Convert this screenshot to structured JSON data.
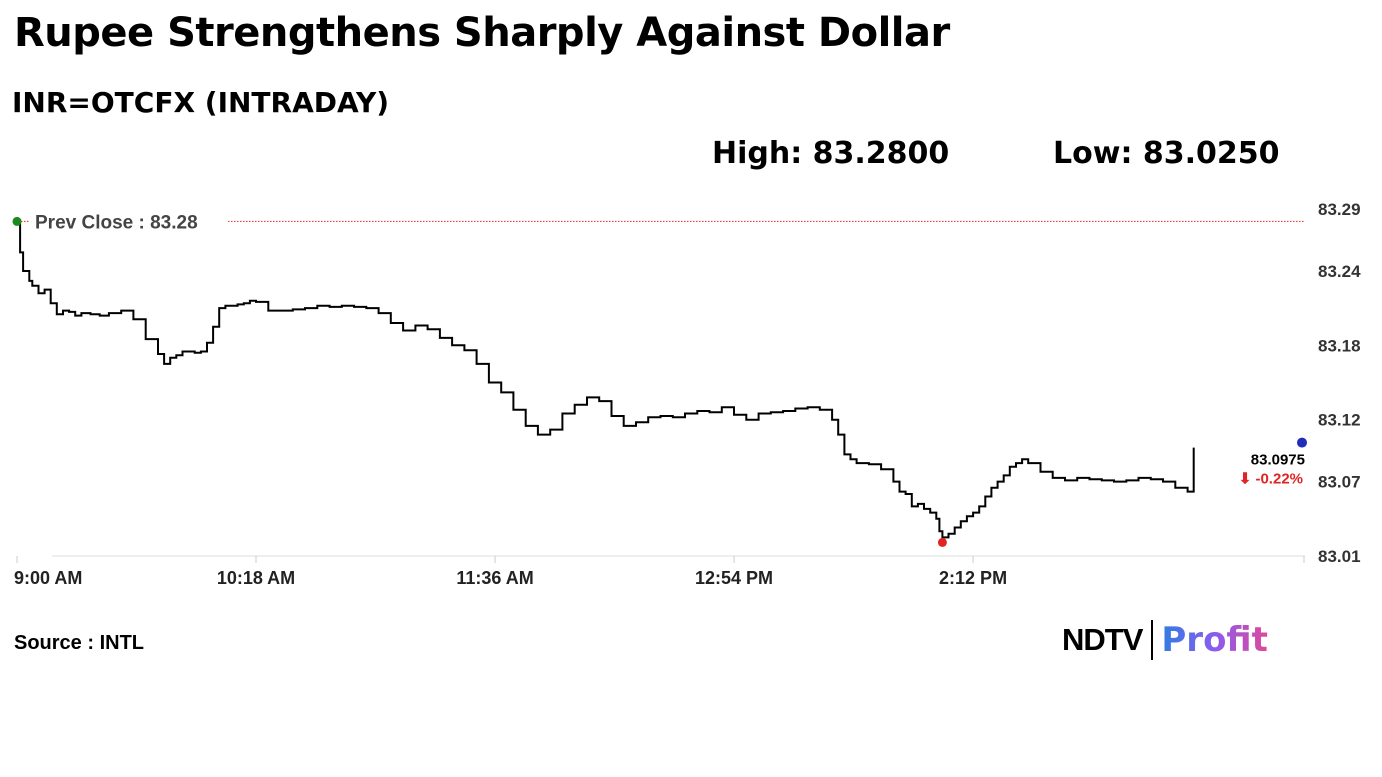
{
  "header": {
    "title": "Rupee Strengthens Sharply Against Dollar",
    "subtitle": "INR=OTCFX (INTRADAY)",
    "high_label": "High: 83.2800",
    "low_label": "Low: 83.0250"
  },
  "footer": {
    "source": "Source : INTL",
    "logo_left": "NDTV",
    "logo_right": "Profit"
  },
  "colors": {
    "line": "#000000",
    "prev_close": "#e02424",
    "start_marker": "#1a8a1a",
    "low_marker": "#e02424",
    "end_marker": "#1f2db8",
    "negative": "#e02424"
  },
  "chart_data": {
    "type": "line",
    "title": "",
    "xlabel": "",
    "ylabel": "",
    "y_axis_side": "right",
    "ylim": [
      83.01,
      83.29
    ],
    "yticks": [
      83.29,
      83.24,
      83.18,
      83.12,
      83.07,
      83.01
    ],
    "ytick_labels": [
      "83.29",
      "83.24",
      "83.18",
      "83.12",
      "83.07",
      "83.01"
    ],
    "xlim": [
      "09:00",
      "16:00"
    ],
    "xticks": [
      "09:00",
      "10:18",
      "11:36",
      "12:54",
      "14:12"
    ],
    "xtick_labels": [
      "9:00 AM",
      "10:18 AM",
      "11:36 AM",
      "12:54 PM",
      "2:12 PM"
    ],
    "prev_close": {
      "label": "Prev Close : 83.28",
      "value": 83.28
    },
    "last": {
      "value_label": "83.0975",
      "change_label": "⬇ -0.22%",
      "value": 83.0975
    },
    "grid": false,
    "series": [
      {
        "x": [
          "09:00",
          "09:01",
          "09:02",
          "09:04",
          "09:05",
          "09:07",
          "09:09",
          "09:11",
          "09:13",
          "09:15",
          "09:17",
          "09:19",
          "09:21",
          "09:24",
          "09:27",
          "09:30",
          "09:34",
          "09:38",
          "09:42",
          "09:46",
          "09:48",
          "09:50",
          "09:52",
          "09:54",
          "09:56",
          "09:58",
          "10:00",
          "10:02",
          "10:04",
          "10:06",
          "10:08",
          "10:10",
          "10:12",
          "10:14",
          "10:16",
          "10:18",
          "10:22",
          "10:26",
          "10:30",
          "10:34",
          "10:38",
          "10:42",
          "10:46",
          "10:50",
          "10:54",
          "10:58",
          "11:02",
          "11:06",
          "11:10",
          "11:14",
          "11:18",
          "11:22",
          "11:26",
          "11:30",
          "11:34",
          "11:38",
          "11:42",
          "11:46",
          "11:50",
          "11:54",
          "11:58",
          "12:02",
          "12:06",
          "12:10",
          "12:14",
          "12:18",
          "12:22",
          "12:26",
          "12:30",
          "12:34",
          "12:38",
          "12:42",
          "12:46",
          "12:50",
          "12:54",
          "12:58",
          "13:02",
          "13:06",
          "13:10",
          "13:14",
          "13:18",
          "13:22",
          "13:26",
          "13:28",
          "13:30",
          "13:32",
          "13:34",
          "13:38",
          "13:42",
          "13:46",
          "13:48",
          "13:50",
          "13:52",
          "13:54",
          "13:56",
          "13:58",
          "14:00",
          "14:01",
          "14:02",
          "14:04",
          "14:06",
          "14:08",
          "14:10",
          "14:12",
          "14:14",
          "14:16",
          "14:18",
          "14:20",
          "14:22",
          "14:24",
          "14:26",
          "14:28",
          "14:30",
          "14:34",
          "14:38",
          "14:42",
          "14:46",
          "14:50",
          "14:54",
          "14:58",
          "15:02",
          "15:06",
          "15:10",
          "15:14",
          "15:18",
          "15:20",
          "15:22",
          "15:24"
        ],
        "y": [
          83.28,
          83.255,
          83.24,
          83.232,
          83.228,
          83.222,
          83.225,
          83.214,
          83.205,
          83.208,
          83.207,
          83.204,
          83.206,
          83.205,
          83.204,
          83.206,
          83.208,
          83.201,
          83.185,
          83.173,
          83.165,
          83.17,
          83.172,
          83.175,
          83.175,
          83.174,
          83.175,
          83.182,
          83.195,
          83.21,
          83.212,
          83.212,
          83.213,
          83.214,
          83.216,
          83.215,
          83.208,
          83.208,
          83.209,
          83.21,
          83.212,
          83.211,
          83.212,
          83.211,
          83.21,
          83.206,
          83.198,
          83.192,
          83.196,
          83.193,
          83.186,
          83.18,
          83.176,
          83.165,
          83.15,
          83.142,
          83.128,
          83.115,
          83.108,
          83.112,
          83.125,
          83.132,
          83.138,
          83.135,
          83.123,
          83.115,
          83.118,
          83.122,
          83.123,
          83.122,
          83.125,
          83.127,
          83.126,
          83.13,
          83.124,
          83.12,
          83.125,
          83.126,
          83.127,
          83.129,
          83.13,
          83.128,
          83.12,
          83.108,
          83.092,
          83.088,
          83.085,
          83.084,
          83.08,
          83.07,
          83.062,
          83.06,
          83.05,
          83.052,
          83.048,
          83.045,
          83.04,
          83.03,
          83.025,
          83.028,
          83.033,
          83.038,
          83.042,
          83.045,
          83.05,
          83.058,
          83.065,
          83.07,
          83.075,
          83.082,
          83.085,
          83.088,
          83.085,
          83.078,
          83.073,
          83.071,
          83.073,
          83.072,
          83.071,
          83.07,
          83.071,
          83.073,
          83.072,
          83.07,
          83.065,
          83.065,
          83.062,
          83.0975
        ]
      }
    ]
  }
}
